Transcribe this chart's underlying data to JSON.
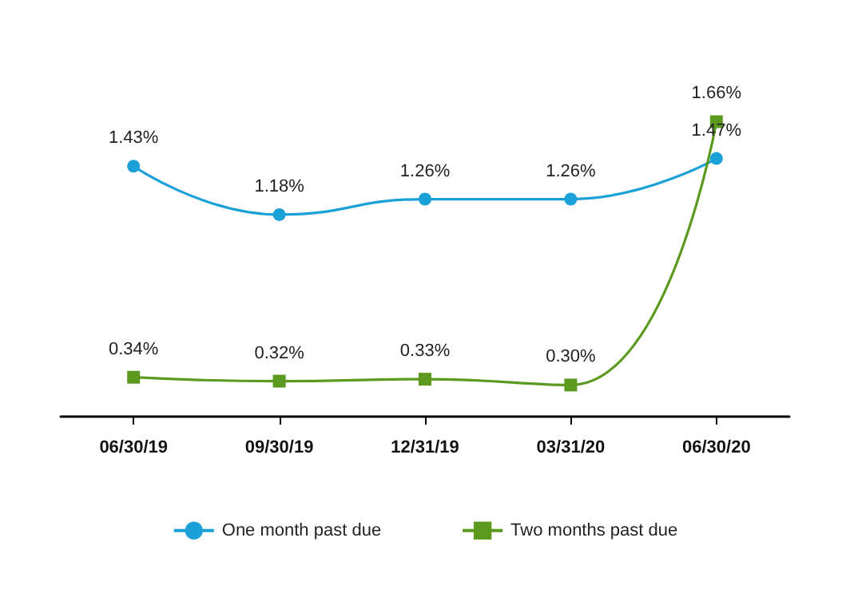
{
  "chart_data": {
    "type": "line",
    "categories": [
      "06/30/19",
      "09/30/19",
      "12/31/19",
      "03/31/20",
      "06/30/20"
    ],
    "series": [
      {
        "name": "One month past due",
        "color": "#1ba1d8",
        "marker": "circle",
        "values": [
          1.43,
          1.18,
          1.26,
          1.26,
          1.47
        ],
        "value_labels": [
          "1.43%",
          "1.18%",
          "1.26%",
          "1.26%",
          "1.47%"
        ]
      },
      {
        "name": "Two months past due",
        "color": "#5b9a1f",
        "marker": "square",
        "values": [
          0.34,
          0.32,
          0.33,
          0.3,
          1.66
        ],
        "value_labels": [
          "0.34%",
          "0.32%",
          "0.33%",
          "0.30%",
          "1.66%"
        ]
      }
    ],
    "legend": "bottom",
    "grid": false,
    "line_style": "solid"
  }
}
